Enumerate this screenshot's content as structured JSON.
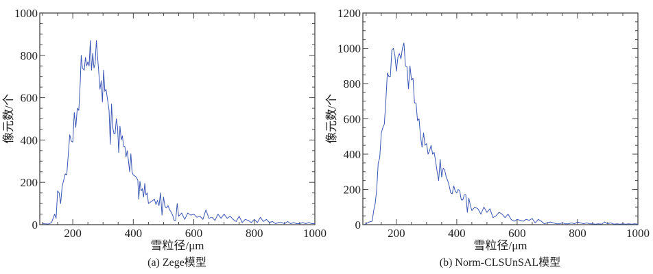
{
  "chart_data": [
    {
      "type": "line",
      "caption": "(a) Zege模型",
      "xlabel": "雪粒径/μm",
      "ylabel": "像元数/个",
      "xlim": [
        91,
        1000
      ],
      "ylim": [
        0,
        1000
      ],
      "xticks": [
        200,
        400,
        600,
        800,
        1000
      ],
      "yticks": [
        0,
        200,
        400,
        600,
        800,
        1000
      ],
      "x_minor_step": 50,
      "y_minor_step": 50,
      "color": "#3a55b4",
      "x": [
        100,
        120,
        130,
        140,
        145,
        150,
        155,
        160,
        165,
        175,
        180,
        185,
        190,
        195,
        200,
        205,
        210,
        215,
        220,
        225,
        228,
        232,
        238,
        242,
        246,
        250,
        254,
        258,
        262,
        266,
        270,
        274,
        278,
        282,
        286,
        290,
        294,
        298,
        302,
        306,
        310,
        315,
        320,
        324,
        328,
        332,
        336,
        340,
        344,
        348,
        352,
        356,
        360,
        364,
        368,
        372,
        376,
        380,
        384,
        388,
        392,
        396,
        400,
        405,
        410,
        415,
        418,
        422,
        426,
        430,
        434,
        438,
        442,
        446,
        450,
        460,
        470,
        475,
        480,
        485,
        490,
        495,
        500,
        505,
        510,
        515,
        520,
        525,
        530,
        535,
        540,
        545,
        550,
        560,
        570,
        580,
        590,
        600,
        610,
        620,
        630,
        640,
        650,
        660,
        670,
        680,
        690,
        700,
        710,
        720,
        730,
        740,
        750,
        760,
        770,
        780,
        790,
        800,
        810,
        820,
        830,
        840,
        850,
        860,
        870,
        880,
        890,
        900,
        910,
        920,
        930,
        940,
        950,
        960,
        970,
        980,
        990,
        1000
      ],
      "y": [
        5,
        3,
        10,
        50,
        30,
        160,
        150,
        100,
        180,
        240,
        235,
        330,
        425,
        395,
        390,
        530,
        460,
        550,
        540,
        680,
        800,
        740,
        730,
        790,
        750,
        770,
        750,
        870,
        730,
        810,
        740,
        760,
        870,
        790,
        720,
        640,
        680,
        580,
        730,
        630,
        640,
        590,
        540,
        380,
        570,
        460,
        430,
        430,
        500,
        460,
        340,
        465,
        400,
        420,
        370,
        370,
        320,
        350,
        300,
        250,
        335,
        250,
        235,
        230,
        225,
        210,
        120,
        205,
        160,
        170,
        130,
        195,
        140,
        150,
        100,
        110,
        120,
        95,
        115,
        90,
        150,
        45,
        130,
        85,
        80,
        90,
        70,
        60,
        45,
        20,
        20,
        100,
        40,
        55,
        25,
        55,
        45,
        50,
        35,
        40,
        25,
        70,
        30,
        35,
        20,
        50,
        30,
        50,
        30,
        40,
        25,
        15,
        40,
        10,
        25,
        20,
        10,
        25,
        10,
        35,
        15,
        25,
        10,
        15,
        5,
        10,
        10,
        5,
        15,
        5,
        10,
        5,
        5,
        10,
        5,
        10,
        5,
        5
      ]
    },
    {
      "type": "line",
      "caption": "(b) Norm-CLSUnSAL模型",
      "xlabel": "雪粒径/μm",
      "ylabel": "像元数/个",
      "xlim": [
        89,
        1000
      ],
      "ylim": [
        0,
        1200
      ],
      "xticks": [
        200,
        400,
        600,
        800,
        1000
      ],
      "yticks": [
        0,
        200,
        400,
        600,
        800,
        1000,
        1200
      ],
      "x_minor_step": 50,
      "y_minor_step": 50,
      "color": "#3a55b4",
      "x": [
        95,
        100,
        110,
        120,
        125,
        130,
        135,
        140,
        145,
        150,
        155,
        160,
        165,
        170,
        175,
        180,
        185,
        190,
        195,
        200,
        205,
        210,
        215,
        220,
        225,
        230,
        235,
        240,
        245,
        250,
        255,
        260,
        265,
        270,
        275,
        280,
        285,
        290,
        295,
        300,
        305,
        310,
        315,
        320,
        325,
        330,
        335,
        340,
        345,
        350,
        355,
        360,
        365,
        370,
        375,
        380,
        385,
        390,
        395,
        400,
        405,
        410,
        415,
        420,
        425,
        430,
        435,
        440,
        445,
        450,
        460,
        470,
        480,
        490,
        500,
        510,
        520,
        530,
        540,
        550,
        560,
        570,
        580,
        590,
        600,
        610,
        620,
        630,
        640,
        650,
        660,
        670,
        680,
        690,
        700,
        710,
        720,
        730,
        740,
        750,
        760,
        770,
        780,
        790,
        800,
        810,
        820,
        830,
        840,
        850,
        860,
        870,
        880,
        890,
        900,
        910,
        920,
        930,
        940,
        950,
        960,
        970,
        980,
        990,
        1000
      ],
      "y": [
        3,
        5,
        15,
        20,
        80,
        120,
        200,
        350,
        380,
        520,
        550,
        570,
        700,
        860,
        840,
        840,
        990,
        1000,
        960,
        870,
        950,
        970,
        940,
        1000,
        1030,
        900,
        895,
        770,
        900,
        820,
        830,
        690,
        690,
        590,
        600,
        500,
        440,
        520,
        450,
        460,
        400,
        420,
        450,
        400,
        410,
        360,
        300,
        250,
        370,
        270,
        320,
        310,
        270,
        250,
        220,
        180,
        175,
        220,
        190,
        180,
        200,
        190,
        140,
        140,
        170,
        170,
        70,
        150,
        110,
        80,
        100,
        90,
        60,
        100,
        70,
        90,
        40,
        50,
        70,
        60,
        40,
        60,
        30,
        20,
        30,
        25,
        20,
        30,
        25,
        35,
        10,
        30,
        20,
        5,
        10,
        15,
        10,
        5,
        5,
        10,
        5,
        5,
        10,
        5,
        15,
        10,
        5,
        10,
        5,
        5,
        3,
        5,
        3,
        15,
        5,
        10,
        3,
        5,
        3,
        5,
        3,
        5,
        3,
        5,
        3
      ]
    }
  ]
}
